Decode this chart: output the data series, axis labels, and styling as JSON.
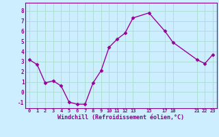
{
  "x": [
    0,
    1,
    2,
    3,
    4,
    5,
    6,
    7,
    8,
    9,
    10,
    11,
    12,
    13,
    15,
    17,
    18,
    21,
    22,
    23
  ],
  "y": [
    3.2,
    2.7,
    0.9,
    1.1,
    0.6,
    -1.0,
    -1.2,
    -1.2,
    0.9,
    2.1,
    4.4,
    5.2,
    5.8,
    7.3,
    7.8,
    6.0,
    4.9,
    3.2,
    2.8,
    3.7
  ],
  "xticks": [
    0,
    1,
    2,
    3,
    4,
    5,
    6,
    7,
    8,
    9,
    10,
    11,
    12,
    13,
    15,
    17,
    18,
    21,
    22,
    23
  ],
  "xtick_labels": [
    "0",
    "1",
    "2",
    "3",
    "4",
    "5",
    "6",
    "7",
    "8",
    "9",
    "10",
    "11",
    "12",
    "13",
    "15",
    "17",
    "18",
    "21",
    "22",
    "23"
  ],
  "yticks": [
    -1,
    0,
    1,
    2,
    3,
    4,
    5,
    6,
    7,
    8
  ],
  "ytick_labels": [
    "-1",
    "0",
    "1",
    "2",
    "3",
    "4",
    "5",
    "6",
    "7",
    "8"
  ],
  "ylim": [
    -1.6,
    8.8
  ],
  "xlim": [
    -0.5,
    23.5
  ],
  "line_color": "#990099",
  "marker": "D",
  "marker_size": 2.5,
  "line_width": 1.0,
  "bg_color": "#cceeff",
  "grid_color": "#aaddcc",
  "xlabel": "Windchill (Refroidissement éolien,°C)",
  "xlabel_color": "#880088",
  "tick_color": "#880088",
  "spine_color": "#880088"
}
